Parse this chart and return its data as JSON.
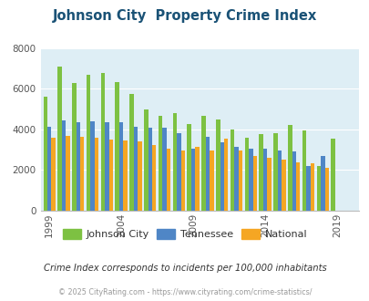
{
  "title": "Johnson City  Property Crime Index",
  "title_color": "#1a5276",
  "subtitle": "Crime Index corresponds to incidents per 100,000 inhabitants",
  "footer": "© 2025 CityRating.com - https://www.cityrating.com/crime-statistics/",
  "years": [
    1999,
    2000,
    2001,
    2002,
    2003,
    2004,
    2005,
    2006,
    2007,
    2008,
    2009,
    2010,
    2011,
    2012,
    2013,
    2014,
    2015,
    2016,
    2017,
    2018,
    2019,
    2020
  ],
  "johnson_city": [
    5600,
    7100,
    6300,
    6700,
    6800,
    6350,
    5750,
    5000,
    4650,
    4800,
    4250,
    4650,
    4500,
    4000,
    3600,
    3750,
    3800,
    4200,
    3950,
    2200,
    3550,
    null
  ],
  "tennessee": [
    4150,
    4450,
    4350,
    4400,
    4350,
    4350,
    4150,
    4100,
    4100,
    3800,
    3050,
    3650,
    3350,
    3150,
    3050,
    3050,
    2950,
    2900,
    2200,
    2700,
    null,
    null
  ],
  "national": [
    3600,
    3700,
    3650,
    3600,
    3500,
    3450,
    3400,
    3250,
    3050,
    2950,
    3150,
    2950,
    3550,
    2950,
    2700,
    2600,
    2500,
    2400,
    2350,
    2100,
    null,
    null
  ],
  "johnson_city_color": "#7dc142",
  "tennessee_color": "#4f86c6",
  "national_color": "#f5a623",
  "bg_color": "#deeef5",
  "ylim": [
    0,
    8000
  ],
  "yticks": [
    0,
    2000,
    4000,
    6000,
    8000
  ],
  "bar_width": 0.28,
  "legend_labels": [
    "Johnson City",
    "Tennessee",
    "National"
  ],
  "tick_years": [
    1999,
    2004,
    2009,
    2014,
    2019
  ]
}
